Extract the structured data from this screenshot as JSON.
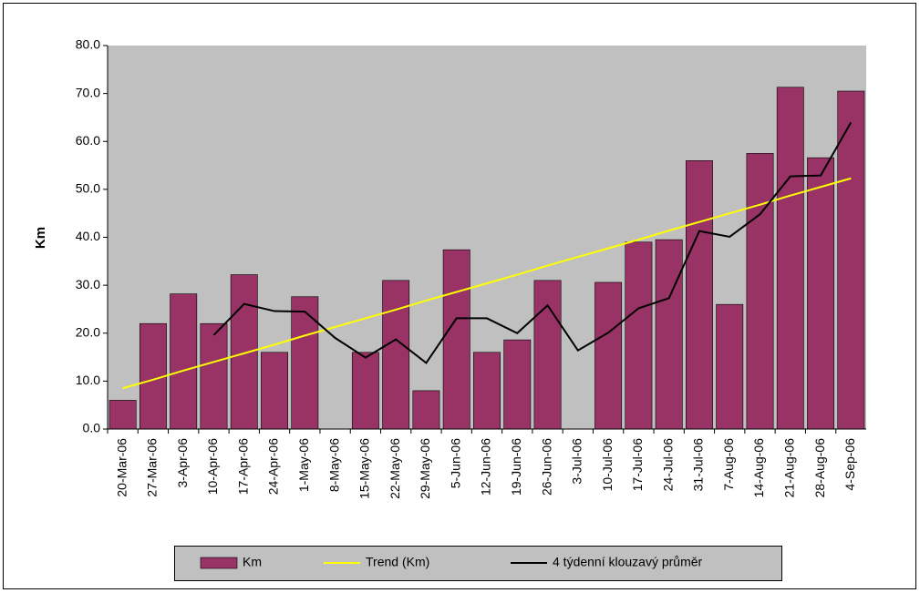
{
  "chart_data": {
    "type": "bar",
    "y_label": "Km",
    "categories": [
      "20-Mar-06",
      "27-Mar-06",
      "3-Apr-06",
      "10-Apr-06",
      "17-Apr-06",
      "24-Apr-06",
      "1-May-06",
      "8-May-06",
      "15-May-06",
      "22-May-06",
      "29-May-06",
      "5-Jun-06",
      "12-Jun-06",
      "19-Jun-06",
      "26-Jun-06",
      "3-Jul-06",
      "10-Jul-06",
      "17-Jul-06",
      "24-Jul-06",
      "31-Jul-06",
      "7-Aug-06",
      "14-Aug-06",
      "21-Aug-06",
      "28-Aug-06",
      "4-Sep-06"
    ],
    "series": [
      {
        "name": "Km",
        "type": "bar",
        "color": "#993366",
        "values": [
          6,
          22,
          28.2,
          22,
          32.2,
          16,
          27.6,
          0,
          16,
          31,
          8,
          37.4,
          16,
          18.6,
          31,
          0,
          30.6,
          39,
          39.5,
          56,
          26,
          57.5,
          71.3,
          56.6,
          70.5
        ]
      },
      {
        "name": "Trend (Km)",
        "type": "line",
        "color": "#ffff00",
        "values": [
          8.5,
          10.3,
          12.2,
          14,
          15.8,
          17.6,
          19.5,
          21.3,
          23.1,
          24.9,
          26.8,
          28.6,
          30.4,
          32.2,
          34.1,
          35.9,
          37.7,
          39.5,
          41.4,
          43.2,
          45,
          46.8,
          48.7,
          50.5,
          52.3
        ]
      },
      {
        "name": "4 týdenní klouzavý průměr",
        "type": "line",
        "color": "#000000",
        "values": [
          null,
          null,
          null,
          19.6,
          26.1,
          24.6,
          24.5,
          19,
          14.9,
          18.7,
          13.8,
          23.1,
          23.1,
          20,
          25.8,
          16.4,
          20.1,
          25.2,
          27.3,
          41.3,
          40.1,
          44.8,
          52.7,
          52.9,
          64
        ]
      }
    ],
    "ylim": [
      0,
      80
    ],
    "yticks": [
      {
        "value": 0,
        "label": "0.0"
      },
      {
        "value": 10,
        "label": "10.0"
      },
      {
        "value": 20,
        "label": "20.0"
      },
      {
        "value": 30,
        "label": "30.0"
      },
      {
        "value": 40,
        "label": "40.0"
      },
      {
        "value": 50,
        "label": "50.0"
      },
      {
        "value": 60,
        "label": "60.0"
      },
      {
        "value": 70,
        "label": "70.0"
      },
      {
        "value": 80,
        "label": "80.0"
      }
    ],
    "plot_background": "#c0c0c0"
  }
}
